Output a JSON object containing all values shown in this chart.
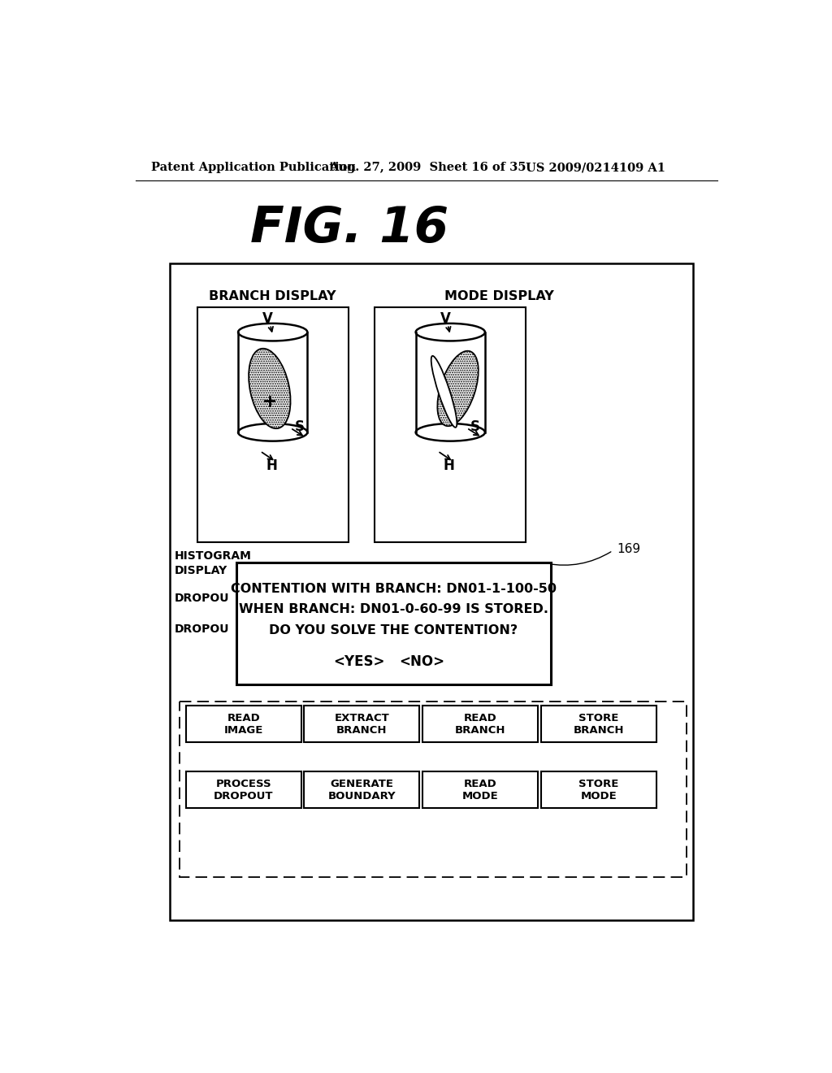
{
  "header_left": "Patent Application Publication",
  "header_mid": "Aug. 27, 2009  Sheet 16 of 35",
  "header_right": "US 2009/0214109 A1",
  "fig_title": "FIG. 16",
  "branch_display_label": "BRANCH DISPLAY",
  "mode_display_label": "MODE DISPLAY",
  "dialog_number": "169",
  "dialog_line1": "CONTENTION WITH BRANCH: DN01-1-100-50",
  "dialog_line2": "WHEN BRANCH: DN01-0-60-99 IS STORED.",
  "dialog_line3": "DO YOU SOLVE THE CONTENTION?",
  "dialog_yes": "<YES>",
  "dialog_no": "<NO>",
  "left_label1": "HISTOGRAM",
  "left_label2": "DISPLAY",
  "left_label3": "DROPOU",
  "left_label4": "DROPOU",
  "btn_r1": [
    "READ\nIMAGE",
    "EXTRACT\nBRANCH",
    "READ\nBRANCH",
    "STORE\nBRANCH"
  ],
  "btn_r2": [
    "PROCESS\nDROPOUT",
    "GENERATE\nBOUNDARY",
    "READ\nMODE",
    "STORE\nMODE"
  ],
  "bg_color": "#ffffff"
}
